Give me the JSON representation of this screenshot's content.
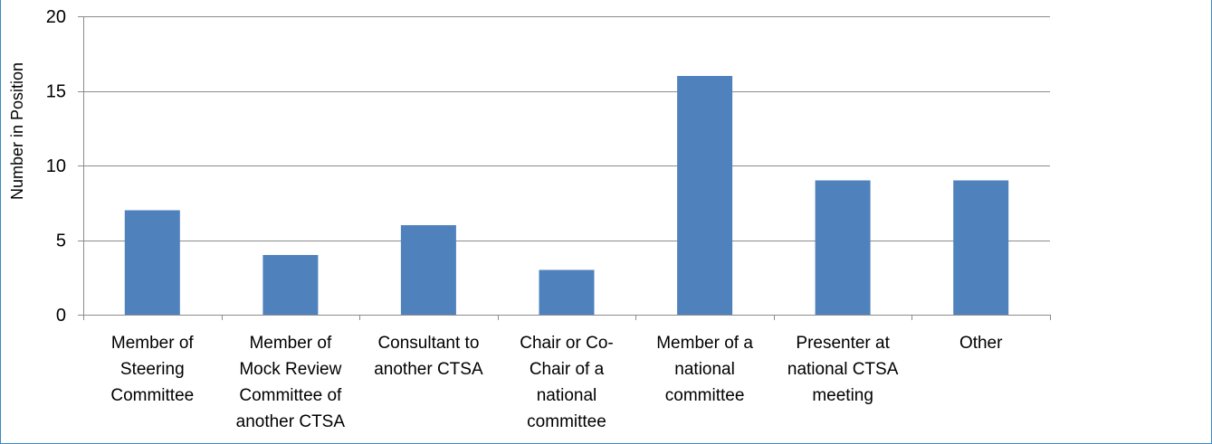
{
  "chart_data": {
    "type": "bar",
    "title": "",
    "xlabel": "",
    "ylabel": "Number in Position",
    "ylim": [
      0,
      20
    ],
    "yticks": [
      0,
      5,
      10,
      15,
      20
    ],
    "grid": true,
    "legend": "none",
    "bar_color": "#4f81bd",
    "categories": [
      [
        "Member of",
        "Steering",
        "Committee"
      ],
      [
        "Member of",
        "Mock Review",
        "Committee of",
        "another CTSA"
      ],
      [
        "Consultant to",
        "another CTSA"
      ],
      [
        "Chair or Co-",
        "Chair of a",
        "national",
        "committee"
      ],
      [
        "Member of a",
        "national",
        "committee"
      ],
      [
        "Presenter at",
        "national CTSA",
        "meeting"
      ],
      [
        "Other"
      ]
    ],
    "values": [
      7,
      4,
      6,
      3,
      16,
      9,
      9
    ]
  }
}
